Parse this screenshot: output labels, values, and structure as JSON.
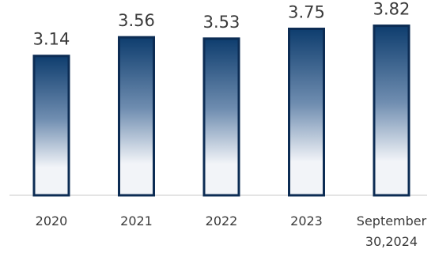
{
  "chart_data": {
    "type": "bar",
    "title": "",
    "xlabel": "",
    "ylabel": "",
    "categories": [
      "2020",
      "2021",
      "2022",
      "2023",
      "September 30,2024"
    ],
    "category_lines": [
      [
        "2020"
      ],
      [
        "2021"
      ],
      [
        "2022"
      ],
      [
        "2023"
      ],
      [
        "September",
        "30,2024"
      ]
    ],
    "values": [
      3.14,
      3.56,
      3.53,
      3.75,
      3.82
    ],
    "data_labels": [
      "3.14",
      "3.56",
      "3.53",
      "3.75",
      "3.82"
    ],
    "ylim": [
      0,
      4.4
    ],
    "grid": false,
    "legend": "none",
    "colors": {
      "bar_top": "#0e3d6e",
      "bar_bottom": "#f2f4f8",
      "bar_border": "#0c2c54",
      "axis": "#c8c8c8",
      "text": "#3a3a3a"
    }
  }
}
